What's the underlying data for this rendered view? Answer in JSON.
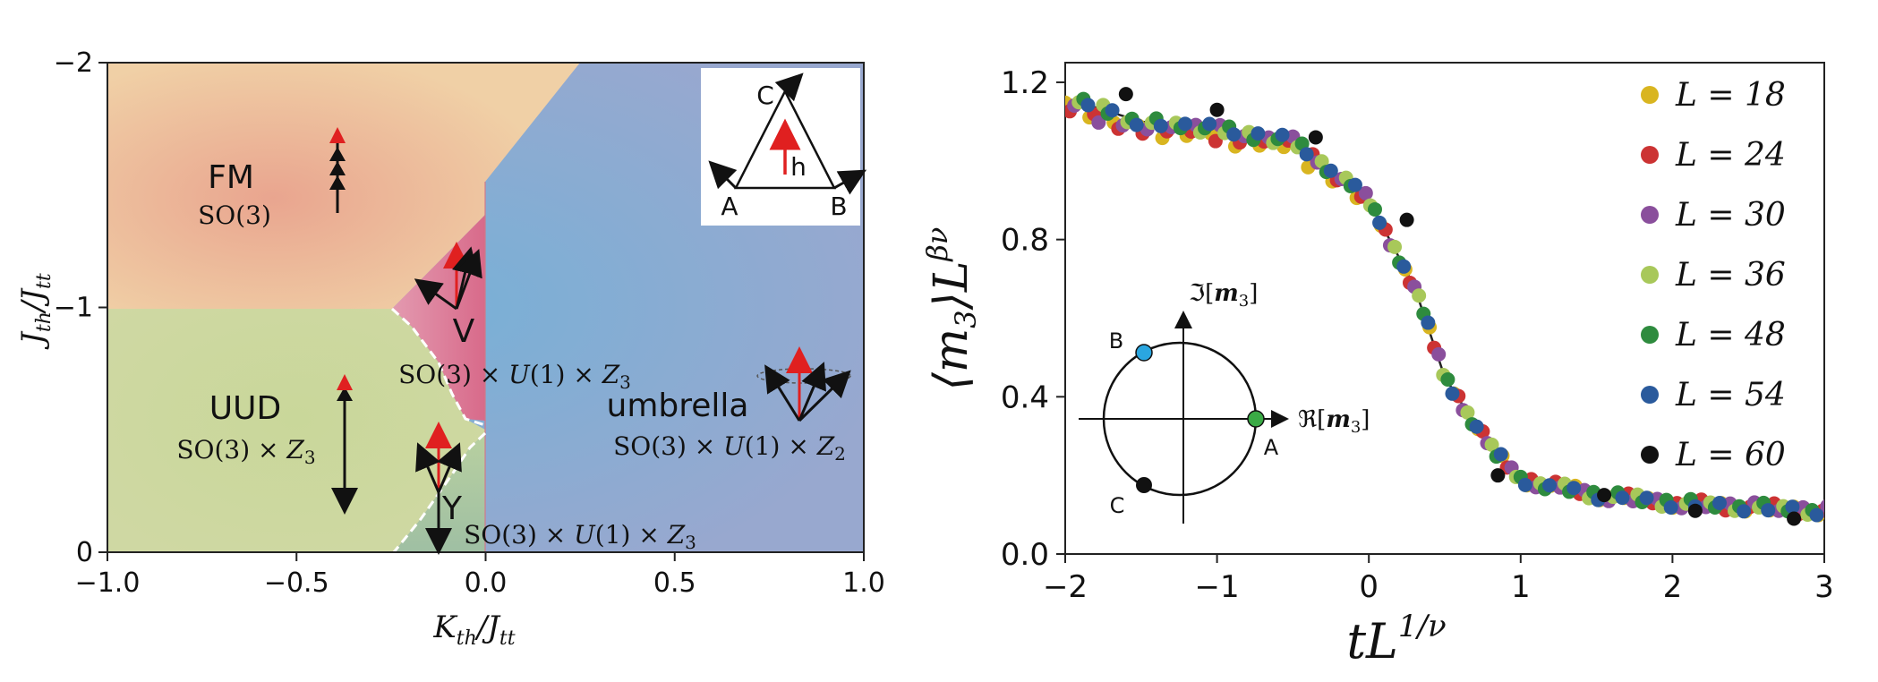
{
  "chart_data": [
    {
      "type": "phase_diagram",
      "xlabel": "K_th/J_tt",
      "ylabel": "J_th/J_tt",
      "xlim": [
        -1.0,
        1.0
      ],
      "ylim": [
        0,
        -2
      ],
      "xticks": [
        "−1.0",
        "−0.5",
        "0.0",
        "0.5",
        "1.0"
      ],
      "yticks": [
        "−2",
        "−1",
        "0"
      ],
      "phases": [
        {
          "name": "FM",
          "symmetry": "SO(3)"
        },
        {
          "name": "V",
          "symmetry": "SO(3) × U(1) × Z3"
        },
        {
          "name": "UUD",
          "symmetry": "SO(3) × Z3"
        },
        {
          "name": "umbrella",
          "symmetry": "SO(3) × U(1) × Z2"
        },
        {
          "name": "Y",
          "symmetry": "SO(3) × U(1) × Z3"
        }
      ],
      "boundaries": {
        "fm_umbrella": [
          [
            -0.25,
            -1.0
          ],
          [
            0.0,
            -1.5
          ],
          [
            0.25,
            -2.0
          ]
        ],
        "uud_fm": [
          [
            -1.0,
            -1.0
          ],
          [
            -0.25,
            -1.0
          ]
        ],
        "v_uud_dashed": [
          [
            -0.25,
            -1.0
          ],
          [
            -0.1,
            -0.85
          ],
          [
            -0.03,
            -0.6
          ],
          [
            0.0,
            -0.5
          ]
        ],
        "y_uud_dashed": [
          [
            0.0,
            -0.45
          ],
          [
            -0.08,
            -0.25
          ],
          [
            -0.25,
            0.0
          ]
        ],
        "center_divider": [
          [
            0.0,
            -1.45
          ],
          [
            0.0,
            0.0
          ]
        ]
      },
      "inset": {
        "labels": [
          "C",
          "A",
          "B",
          "h"
        ]
      }
    },
    {
      "type": "scatter",
      "xlabel": "tL^{1/ν}",
      "ylabel": "⟨m3⟩L^{βν}",
      "xlim": [
        -2,
        3
      ],
      "ylim": [
        0.0,
        1.25
      ],
      "xticks": [
        -2,
        -1,
        0,
        1,
        2,
        3
      ],
      "yticks": [
        "0.0",
        "0.4",
        "0.8",
        "1.2"
      ],
      "legend_position": "right",
      "series": [
        {
          "name": "L = 18",
          "color": "#d9b520",
          "values": [
            1.16,
            1.1,
            1.08,
            1.05,
            0.9,
            0.68,
            0.45,
            0.27,
            0.19,
            0.15,
            0.13,
            0.12,
            0.11
          ]
        },
        {
          "name": "L = 24",
          "color": "#cc3333",
          "values": [
            1.16,
            1.1,
            1.08,
            1.05,
            0.9,
            0.68,
            0.45,
            0.27,
            0.19,
            0.15,
            0.13,
            0.12,
            0.11
          ]
        },
        {
          "name": "L = 30",
          "color": "#8a4f9c",
          "values": [
            1.16,
            1.1,
            1.08,
            1.05,
            0.9,
            0.68,
            0.45,
            0.27,
            0.19,
            0.15,
            0.13,
            0.12,
            0.11
          ]
        },
        {
          "name": "L = 36",
          "color": "#a8c85a",
          "values": [
            1.16,
            1.1,
            1.08,
            1.05,
            0.9,
            0.68,
            0.45,
            0.27,
            0.19,
            0.15,
            0.13,
            0.12,
            0.11
          ]
        },
        {
          "name": "L = 48",
          "color": "#2e8b3e",
          "values": [
            1.16,
            1.1,
            1.08,
            1.05,
            0.9,
            0.68,
            0.45,
            0.27,
            0.19,
            0.15,
            0.13,
            0.12,
            0.11
          ]
        },
        {
          "name": "L = 54",
          "color": "#2a5a9c",
          "values": [
            1.16,
            1.1,
            1.08,
            1.05,
            0.9,
            0.68,
            0.45,
            0.27,
            0.19,
            0.15,
            0.13,
            0.12,
            0.11
          ]
        },
        {
          "name": "L = 60",
          "color": "#111111",
          "values": [
            1.17,
            1.13,
            1.06,
            0.85,
            0.2,
            0.15,
            0.11,
            0.09
          ]
        }
      ],
      "x": [
        -2,
        -1.5,
        -1,
        -0.5,
        0,
        0.3,
        0.5,
        0.8,
        1,
        1.5,
        2,
        2.5,
        3
      ],
      "x_L60": [
        -1.6,
        -1,
        -0.35,
        0.25,
        0.85,
        1.55,
        2.15,
        2.8
      ],
      "inset": {
        "labels": [
          "B",
          "A",
          "C",
          "ℑ[m3]",
          "ℜ[m3]"
        ]
      }
    }
  ]
}
